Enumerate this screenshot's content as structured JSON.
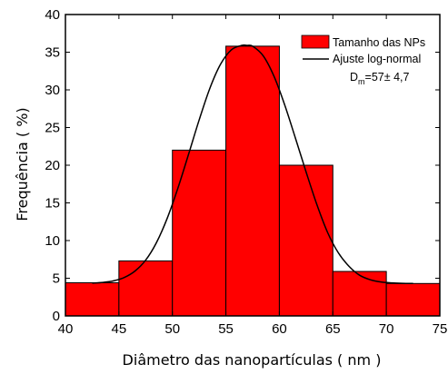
{
  "chart_data": {
    "type": "bar",
    "subtype": "histogram",
    "title": "",
    "xlabel": "Diâmetro das nanopartículas (  nm )",
    "ylabel": "Frequência (  %)",
    "xlim": [
      40,
      75
    ],
    "ylim": [
      0,
      40
    ],
    "xticks": [
      40,
      45,
      50,
      55,
      60,
      65,
      70,
      75
    ],
    "yticks": [
      0,
      5,
      10,
      15,
      20,
      25,
      30,
      35,
      40
    ],
    "bins": [
      {
        "from": 40,
        "to": 45,
        "value": 4.4
      },
      {
        "from": 45,
        "to": 50,
        "value": 7.3
      },
      {
        "from": 50,
        "to": 55,
        "value": 22.0
      },
      {
        "from": 55,
        "to": 60,
        "value": 35.8
      },
      {
        "from": 60,
        "to": 65,
        "value": 20.0
      },
      {
        "from": 65,
        "to": 70,
        "value": 5.9
      },
      {
        "from": 70,
        "to": 75,
        "value": 4.3
      }
    ],
    "fit": {
      "name": "Ajuste log-normal",
      "x": [
        42.5,
        43.5,
        44.5,
        45.5,
        46.5,
        47.5,
        48.5,
        49.5,
        50.5,
        51.5,
        52.5,
        53.5,
        54.5,
        55.5,
        56.5,
        57.0,
        57.5,
        58.5,
        59.5,
        60.5,
        61.5,
        62.5,
        63.5,
        64.5,
        65.5,
        66.5,
        67.5,
        68.5,
        69.5,
        70.5,
        71.5,
        72.5
      ],
      "y": [
        4.35,
        4.44,
        4.65,
        5.1,
        5.95,
        7.4,
        9.7,
        12.9,
        16.9,
        21.4,
        26.0,
        30.2,
        33.4,
        35.3,
        35.9,
        35.9,
        35.8,
        34.5,
        31.8,
        28.0,
        23.6,
        19.1,
        14.8,
        11.1,
        8.4,
        6.6,
        5.4,
        4.8,
        4.5,
        4.38,
        4.32,
        4.3
      ]
    },
    "legend": {
      "position": "top-right",
      "bar_label": "Tamanho das NPs",
      "line_label": "Ajuste log-normal"
    },
    "annotation": {
      "prefix": "D",
      "sub": "m",
      "suffix": "=57± 4,7"
    },
    "grid": false,
    "colors": {
      "bar_fill": "#ff0000",
      "bar_edge": "#000000",
      "fit_line": "#000000"
    }
  }
}
